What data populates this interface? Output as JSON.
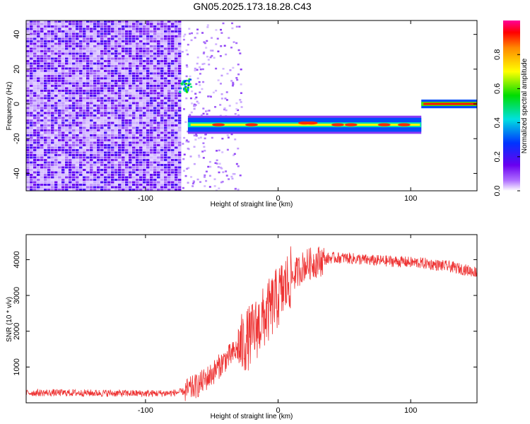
{
  "figure": {
    "title": "GN05.2025.173.18.28.C43"
  },
  "chart_data": [
    {
      "type": "heatmap",
      "title": "GN05.2025.173.18.28.C43",
      "xlabel": "Height of straight line (km)",
      "ylabel": "Frequency (Hz)",
      "xlim": [
        -190,
        150
      ],
      "ylim": [
        -50,
        48
      ],
      "xticks": [
        -100,
        0,
        100
      ],
      "yticks": [
        40,
        20,
        0,
        -20,
        -40
      ],
      "grid": false,
      "colorbar": {
        "label": "Normalized spectral amplitude",
        "range": [
          0.0,
          1.0
        ],
        "ticks": [
          0.0,
          0.2,
          0.4,
          0.6,
          0.8
        ],
        "colormap": "rainbow: white → violet → blue → cyan → green → yellow → orange → red → magenta"
      },
      "regions": [
        {
          "x": [
            -190,
            -73
          ],
          "freq": [
            -50,
            48
          ],
          "amplitude": 0.1
        },
        {
          "x": [
            -75,
            -66
          ],
          "freq": [
            7,
            15
          ],
          "amplitude": 0.45
        },
        {
          "x": [
            -68,
            108
          ],
          "freq": [
            -16,
            -8
          ],
          "amplitude": 0.4
        },
        {
          "x": [
            108,
            150
          ],
          "freq": [
            -1,
            1.5
          ],
          "amplitude": 0.9
        }
      ],
      "trace": [
        {
          "x": -65,
          "freq": -12
        },
        {
          "x": -40,
          "freq": -12
        },
        {
          "x": -10,
          "freq": -12
        },
        {
          "x": 20,
          "freq": -11
        },
        {
          "x": 45,
          "freq": -12
        },
        {
          "x": 75,
          "freq": -12
        },
        {
          "x": 107,
          "freq": -12
        },
        {
          "x": 108,
          "freq": 0
        },
        {
          "x": 150,
          "freq": 0
        }
      ]
    },
    {
      "type": "line",
      "xlabel": "Height of straight line (km)",
      "ylabel": "SNR (10 * v/v)",
      "xlim": [
        -190,
        150
      ],
      "ylim": [
        0,
        4700
      ],
      "xticks": [
        -100,
        0,
        100
      ],
      "yticks": [
        1000,
        2000,
        3000,
        4000
      ],
      "grid": false,
      "color": "#ee3333",
      "x": [
        -190,
        -160,
        -130,
        -100,
        -80,
        -70,
        -60,
        -50,
        -40,
        -30,
        -20,
        -10,
        0,
        10,
        20,
        30,
        40,
        50,
        70,
        90,
        110,
        130,
        150
      ],
      "y": [
        280,
        280,
        270,
        260,
        270,
        320,
        500,
        800,
        1200,
        1500,
        1900,
        2400,
        2950,
        3500,
        3850,
        3950,
        4050,
        4050,
        3980,
        3950,
        3900,
        3800,
        3650
      ]
    }
  ]
}
